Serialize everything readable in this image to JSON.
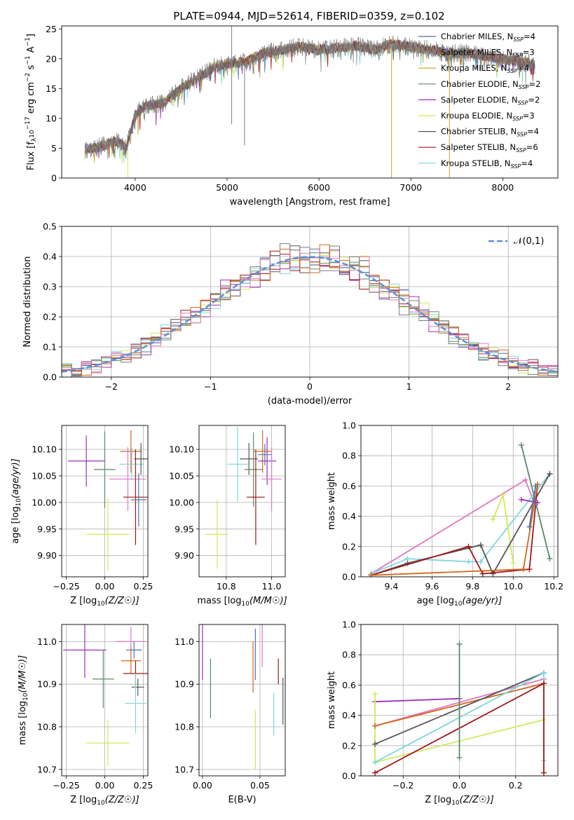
{
  "figure": {
    "title": "PLATE=0944, MJD=52614, FIBERID=0359, z=0.102"
  },
  "colors": {
    "Chabrier MILES": "#4c72b0",
    "Salpeter MILES": "#7f7f7f",
    "Kroupa MILES": "#c9a227",
    "Chabrier ELODIE": "#5b8a6a",
    "Salpeter ELODIE": "#9b30b5",
    "Kroupa ELODIE": "#d4e85a",
    "Chabrier STELIB": "#555555",
    "Salpeter STELIB": "#a01818",
    "Kroupa STELIB": "#7fd6dc",
    "pink": "#e377c2",
    "orange": "#d2691e",
    "gauss": "#5b8fd6"
  },
  "chart_data": [
    {
      "id": "spectrum",
      "type": "line",
      "title": "PLATE=0944, MJD=52614, FIBERID=0359, z=0.102",
      "xlabel": "wavelength [Angstrom, rest frame]",
      "ylabel": "Flux [f_λ10^-17 erg cm^-2 s^-1 A^-1]",
      "xlim": [
        3200,
        8600
      ],
      "ylim": [
        0,
        25.5
      ],
      "xticks": [
        4000,
        5000,
        6000,
        7000,
        8000
      ],
      "yticks": [
        0,
        5,
        10,
        15,
        20,
        25
      ],
      "grid": false,
      "legend": "right",
      "legend_entries": [
        {
          "model": "Chabrier MILES",
          "n": "4"
        },
        {
          "model": "Salpeter MILES",
          "n": "3"
        },
        {
          "model": "Kroupa MILES",
          "n": "4"
        },
        {
          "model": "Chabrier ELODIE",
          "n": "2"
        },
        {
          "model": "Salpeter ELODIE",
          "n": "2"
        },
        {
          "model": "Kroupa ELODIE",
          "n": "3"
        },
        {
          "model": "Chabrier STELIB",
          "n": "4"
        },
        {
          "model": "Salpeter STELIB",
          "n": "6"
        },
        {
          "model": "Kroupa STELIB",
          "n": "4"
        }
      ],
      "continuum": [
        [
          3450,
          4.8
        ],
        [
          3600,
          5.2
        ],
        [
          3800,
          6.2
        ],
        [
          3900,
          5.0
        ],
        [
          3950,
          7.5
        ],
        [
          4000,
          10.5
        ],
        [
          4100,
          12.0
        ],
        [
          4300,
          12.5
        ],
        [
          4500,
          15.0
        ],
        [
          4700,
          17.0
        ],
        [
          4850,
          18.5
        ],
        [
          5000,
          19.2
        ],
        [
          5200,
          19.5
        ],
        [
          5400,
          21.0
        ],
        [
          5600,
          21.5
        ],
        [
          5800,
          22.0
        ],
        [
          6000,
          21.5
        ],
        [
          6200,
          21.8
        ],
        [
          6400,
          22.2
        ],
        [
          6600,
          21.5
        ],
        [
          6800,
          22.5
        ],
        [
          7000,
          22.0
        ],
        [
          7200,
          21.5
        ],
        [
          7400,
          21.0
        ],
        [
          7600,
          21.0
        ],
        [
          7800,
          20.5
        ],
        [
          8000,
          20.0
        ],
        [
          8200,
          19.5
        ],
        [
          8350,
          19.0
        ]
      ],
      "spikes": [
        {
          "x": 5050,
          "ymin": 9.0,
          "ymax": 25.5,
          "model": "Salpeter MILES"
        },
        {
          "x": 6790,
          "ymin": 0,
          "ymax": 22.0,
          "model": "Kroupa MILES"
        },
        {
          "x": 7420,
          "ymin": 0,
          "ymax": 21.5,
          "model": "Kroupa MILES"
        },
        {
          "x": 3920,
          "ymin": 0,
          "ymax": 5.0,
          "model": "Kroupa ELODIE"
        },
        {
          "x": 5190,
          "ymin": 5.5,
          "ymax": 19.0,
          "model": "Salpeter MILES"
        }
      ]
    },
    {
      "id": "residuals",
      "type": "line",
      "xlabel": "(data-model)/error",
      "ylabel": "Normed distribution",
      "xlim": [
        -2.5,
        2.5
      ],
      "ylim": [
        0,
        0.5
      ],
      "xticks": [
        -2,
        -1,
        0,
        1,
        2
      ],
      "yticks": [
        0.0,
        0.1,
        0.2,
        0.3,
        0.4,
        0.5
      ],
      "grid": true,
      "legend": "top-right",
      "legend_label": "𝒩(0,1)",
      "bin_width": 0.1,
      "bin_start": -2.5
    },
    {
      "id": "age_vs_Z",
      "type": "scatter",
      "xlabel": "Z [log10(Z/Z☉)]",
      "ylabel": "age [log10(age/yr)]",
      "xlim": [
        -0.28,
        0.28
      ],
      "ylim": [
        9.86,
        10.145
      ],
      "xticks": [
        -0.25,
        0.0,
        0.25
      ],
      "yticks": [
        9.9,
        9.95,
        10.0,
        10.05,
        10.1
      ],
      "grid": true,
      "points": [
        {
          "model": "Salpeter ELODIE",
          "x": -0.12,
          "xerr": 0.12,
          "y": 10.078,
          "yerr": 0.048
        },
        {
          "model": "Chabrier ELODIE",
          "x": 0.0,
          "xerr": 0.07,
          "y": 10.062,
          "yerr": 0.072
        },
        {
          "model": "Kroupa ELODIE",
          "x": 0.02,
          "xerr": 0.14,
          "y": 9.94,
          "yerr": 0.068
        },
        {
          "model": "orange",
          "x": 0.17,
          "xerr": 0.07,
          "y": 10.096,
          "yerr": 0.04
        },
        {
          "model": "pink",
          "x": 0.15,
          "xerr": 0.12,
          "y": 10.044,
          "yerr": 0.06
        },
        {
          "model": "Kroupa STELIB",
          "x": 0.175,
          "xerr": 0.08,
          "y": 10.072,
          "yerr": 0.03
        },
        {
          "model": "Chabrier STELIB",
          "x": 0.235,
          "xerr": 0.045,
          "y": 10.082,
          "yerr": 0.03
        },
        {
          "model": "Salpeter STELIB",
          "x": 0.2,
          "xerr": 0.08,
          "y": 10.01,
          "yerr": 0.09
        },
        {
          "model": "Chabrier MILES",
          "x": 0.22,
          "xerr": 0.05,
          "y": 10.005,
          "yerr": 0.05
        }
      ]
    },
    {
      "id": "age_vs_mass",
      "type": "scatter",
      "xlabel": "mass [log10(M/M☉)]",
      "xlim": [
        10.68,
        11.06
      ],
      "ylim": [
        9.86,
        10.145
      ],
      "xticks": [
        10.8,
        11.0
      ],
      "yticks": [
        9.9,
        9.95,
        10.0,
        10.05,
        10.1
      ],
      "grid": true,
      "points": [
        {
          "model": "Kroupa ELODIE",
          "x": 10.76,
          "xerr": 0.05,
          "y": 9.94,
          "yerr": 0.065
        },
        {
          "model": "Kroupa STELIB",
          "x": 10.85,
          "xerr": 0.045,
          "y": 10.072,
          "yerr": 0.07
        },
        {
          "model": "Chabrier STELIB",
          "x": 10.9,
          "xerr": 0.04,
          "y": 10.082,
          "yerr": 0.03
        },
        {
          "model": "Chabrier ELODIE",
          "x": 10.92,
          "xerr": 0.04,
          "y": 10.062,
          "yerr": 0.07
        },
        {
          "model": "Salpeter STELIB",
          "x": 10.93,
          "xerr": 0.04,
          "y": 10.01,
          "yerr": 0.09
        },
        {
          "model": "orange",
          "x": 10.96,
          "xerr": 0.04,
          "y": 10.096,
          "yerr": 0.04
        },
        {
          "model": "Salpeter ELODIE",
          "x": 10.98,
          "xerr": 0.04,
          "y": 10.078,
          "yerr": 0.045
        },
        {
          "model": "pink",
          "x": 11.0,
          "xerr": 0.045,
          "y": 10.044,
          "yerr": 0.06
        },
        {
          "model": "Chabrier MILES",
          "x": 10.97,
          "xerr": 0.03,
          "y": 10.09,
          "yerr": 0.02
        }
      ]
    },
    {
      "id": "mw_vs_age",
      "type": "line",
      "xlabel": "age [log10(age/yr)]",
      "ylabel": "mass weight",
      "xlim": [
        9.25,
        10.22
      ],
      "ylim": [
        0,
        1.0
      ],
      "xticks": [
        9.4,
        9.6,
        9.8,
        10.0,
        10.2
      ],
      "yticks": [
        0.0,
        0.2,
        0.4,
        0.6,
        0.8,
        1.0
      ],
      "grid": true,
      "series": [
        {
          "model": "pink",
          "x": [
            9.3,
            10.06,
            10.1
          ],
          "y": [
            0.02,
            0.64,
            0.5
          ]
        },
        {
          "model": "Kroupa STELIB",
          "x": [
            9.3,
            9.48,
            9.78,
            9.84,
            10.18
          ],
          "y": [
            0.02,
            0.12,
            0.1,
            0.1,
            0.68
          ]
        },
        {
          "model": "Kroupa ELODIE",
          "x": [
            9.9,
            9.95,
            10.0
          ],
          "y": [
            0.38,
            0.54,
            0.09
          ]
        },
        {
          "model": "Chabrier STELIB",
          "x": [
            9.3,
            9.48,
            9.84,
            9.9,
            10.18
          ],
          "y": [
            0.01,
            0.09,
            0.21,
            0.02,
            0.68
          ]
        },
        {
          "model": "Salpeter STELIB",
          "x": [
            9.3,
            9.78,
            9.85,
            10.08,
            10.12
          ],
          "y": [
            0.01,
            0.2,
            0.02,
            0.05,
            0.61
          ]
        },
        {
          "model": "orange",
          "x": [
            9.3,
            10.05,
            10.12
          ],
          "y": [
            0.01,
            0.05,
            0.61
          ]
        },
        {
          "model": "Chabrier ELODIE",
          "x": [
            10.04,
            10.18
          ],
          "y": [
            0.87,
            0.12
          ]
        },
        {
          "model": "Salpeter ELODIE",
          "x": [
            10.04,
            10.12
          ],
          "y": [
            0.51,
            0.49
          ]
        },
        {
          "model": "Chabrier MILES",
          "x": [
            10.08,
            10.11
          ],
          "y": [
            0.33,
            0.6
          ]
        }
      ]
    },
    {
      "id": "mass_vs_Z",
      "type": "scatter",
      "xlabel": "Z [log10(Z/Z☉)]",
      "ylabel": "mass [log10(M/M☉)]",
      "xlim": [
        -0.28,
        0.28
      ],
      "ylim": [
        10.685,
        11.04
      ],
      "xticks": [
        -0.25,
        0.0,
        0.25
      ],
      "yticks": [
        10.7,
        10.8,
        10.9,
        11.0
      ],
      "grid": true,
      "points": [
        {
          "model": "Salpeter ELODIE",
          "x": -0.13,
          "xerr": 0.14,
          "y": 10.98,
          "yerr": 0.065
        },
        {
          "model": "Chabrier ELODIE",
          "x": -0.01,
          "xerr": 0.07,
          "y": 10.912,
          "yerr": 0.068
        },
        {
          "model": "Kroupa ELODIE",
          "x": 0.02,
          "xerr": 0.14,
          "y": 10.762,
          "yerr": 0.055
        },
        {
          "model": "pink",
          "x": 0.17,
          "xerr": 0.1,
          "y": 11.0,
          "yerr": 0.035
        },
        {
          "model": "Chabrier MILES",
          "x": 0.19,
          "xerr": 0.05,
          "y": 10.98,
          "yerr": 0.02
        },
        {
          "model": "orange",
          "x": 0.17,
          "xerr": 0.065,
          "y": 10.955,
          "yerr": 0.03
        },
        {
          "model": "Salpeter STELIB",
          "x": 0.2,
          "xerr": 0.08,
          "y": 10.925,
          "yerr": 0.03
        },
        {
          "model": "Chabrier STELIB",
          "x": 0.215,
          "xerr": 0.04,
          "y": 10.893,
          "yerr": 0.02
        },
        {
          "model": "Kroupa STELIB",
          "x": 0.2,
          "xerr": 0.07,
          "y": 10.855,
          "yerr": 0.07
        }
      ]
    },
    {
      "id": "mass_vs_EBV",
      "type": "scatter",
      "xlabel": "E(B-V)",
      "xlim": [
        -0.003,
        0.072
      ],
      "ylim": [
        10.685,
        11.04
      ],
      "xticks": [
        0.0,
        0.05
      ],
      "yticks": [
        10.7,
        10.8,
        10.9,
        11.0
      ],
      "grid": true,
      "points": [
        {
          "model": "Salpeter ELODIE",
          "x": 0.0,
          "y": 10.98,
          "yerr": 0.07
        },
        {
          "model": "Chabrier ELODIE",
          "x": 0.007,
          "y": 10.89,
          "yerr": 0.07
        },
        {
          "model": "Kroupa ELODIE",
          "x": 0.046,
          "y": 10.77,
          "yerr": 0.07
        },
        {
          "model": "orange",
          "x": 0.044,
          "y": 10.94,
          "yerr": 0.06
        },
        {
          "model": "Chabrier MILES",
          "x": 0.046,
          "y": 10.97,
          "yerr": 0.06
        },
        {
          "model": "pink",
          "x": 0.052,
          "y": 11.0,
          "yerr": 0.06
        },
        {
          "model": "Kroupa STELIB",
          "x": 0.062,
          "y": 10.83,
          "yerr": 0.05
        },
        {
          "model": "Salpeter STELIB",
          "x": 0.066,
          "y": 10.93,
          "yerr": 0.03
        },
        {
          "model": "Chabrier STELIB",
          "x": 0.07,
          "y": 10.86,
          "yerr": 0.055
        }
      ]
    },
    {
      "id": "mw_vs_Z",
      "type": "line",
      "xlabel": "Z [log10(Z/Z☉)]",
      "ylabel": "mass weight",
      "xlim": [
        -0.35,
        0.35
      ],
      "ylim": [
        0,
        1.0
      ],
      "xticks": [
        -0.2,
        0.0,
        0.2
      ],
      "yticks": [
        0.0,
        0.2,
        0.4,
        0.6,
        0.8,
        1.0
      ],
      "grid": true,
      "series": [
        {
          "model": "Salpeter ELODIE",
          "x": [
            -0.3,
            0.0
          ],
          "y": [
            0.49,
            0.51
          ]
        },
        {
          "model": "Kroupa ELODIE",
          "x": [
            -0.3,
            -0.3,
            0.3
          ],
          "y": [
            0.54,
            0.09,
            0.37
          ]
        },
        {
          "model": "pink",
          "x": [
            -0.3,
            0.3
          ],
          "y": [
            0.33,
            0.64
          ]
        },
        {
          "model": "orange",
          "x": [
            -0.3,
            0.3
          ],
          "y": [
            0.33,
            0.61
          ]
        },
        {
          "model": "Chabrier STELIB",
          "x": [
            -0.3,
            0.3
          ],
          "y": [
            0.21,
            0.68
          ]
        },
        {
          "model": "Kroupa STELIB",
          "x": [
            -0.3,
            0.3,
            0.3
          ],
          "y": [
            0.09,
            0.68,
            0.1
          ]
        },
        {
          "model": "Salpeter STELIB",
          "x": [
            -0.3,
            0.3,
            0.3
          ],
          "y": [
            0.02,
            0.61,
            0.02
          ]
        },
        {
          "model": "Chabrier ELODIE",
          "x": [
            0.0,
            0.0
          ],
          "y": [
            0.87,
            0.12
          ]
        }
      ]
    }
  ]
}
